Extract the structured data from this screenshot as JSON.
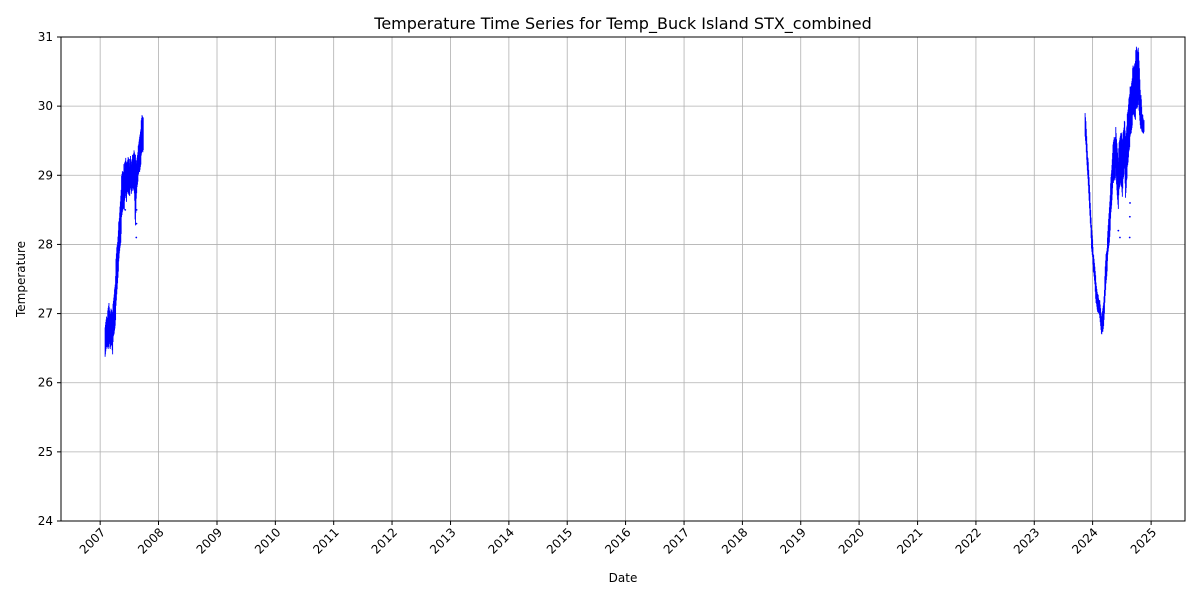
{
  "chart_data": {
    "type": "scatter",
    "title": "Temperature Time Series for Temp_Buck Island STX_combined",
    "xlabel": "Date",
    "ylabel": "Temperature",
    "xlim": [
      "2006-05-01",
      "2025-08-01"
    ],
    "ylim": [
      24,
      31
    ],
    "grid": true,
    "color": "#0000ff",
    "x_tick_labels": [
      "2007",
      "2008",
      "2009",
      "2010",
      "2011",
      "2012",
      "2013",
      "2014",
      "2015",
      "2016",
      "2017",
      "2018",
      "2019",
      "2020",
      "2021",
      "2022",
      "2023",
      "2024",
      "2025"
    ],
    "y_ticks": [
      24,
      25,
      26,
      27,
      28,
      29,
      30,
      31
    ],
    "series": [
      {
        "x": [
          "2007-02-01",
          "2007-02-05",
          "2007-02-10",
          "2007-02-15",
          "2007-02-20",
          "2007-02-25",
          "2007-03-01",
          "2007-03-05",
          "2007-03-10",
          "2007-03-15",
          "2007-03-20",
          "2007-03-25",
          "2007-04-01",
          "2007-04-05",
          "2007-04-10",
          "2007-04-15",
          "2007-04-20",
          "2007-04-25",
          "2007-05-01",
          "2007-05-05",
          "2007-05-10",
          "2007-05-15",
          "2007-05-20",
          "2007-05-25",
          "2007-06-01",
          "2007-06-05",
          "2007-06-10",
          "2007-06-15",
          "2007-06-20",
          "2007-06-25",
          "2007-07-01",
          "2007-07-05",
          "2007-07-10",
          "2007-07-15",
          "2007-07-20",
          "2007-07-25",
          "2007-08-01",
          "2007-08-05",
          "2007-08-10",
          "2007-08-15",
          "2007-08-20",
          "2007-08-25",
          "2007-09-01",
          "2007-09-05",
          "2007-09-10",
          "2007-09-15",
          "2007-09-20",
          "2007-09-25",
          "2007-09-30"
        ],
        "low": [
          26.3,
          26.4,
          26.5,
          26.5,
          26.4,
          26.5,
          26.6,
          26.4,
          26.5,
          26.5,
          26.4,
          26.6,
          26.7,
          26.8,
          27.0,
          27.2,
          27.4,
          27.6,
          27.8,
          27.9,
          28.0,
          28.3,
          28.4,
          28.5,
          28.5,
          28.6,
          28.7,
          28.6,
          28.7,
          28.7,
          28.7,
          28.7,
          28.8,
          28.7,
          28.8,
          28.7,
          28.8,
          28.6,
          28.1,
          28.6,
          28.8,
          28.9,
          29.0,
          29.0,
          29.1,
          29.2,
          29.3,
          29.3,
          29.4
        ],
        "high": [
          26.8,
          26.9,
          27.0,
          27.0,
          27.1,
          27.2,
          27.1,
          27.0,
          27.1,
          27.1,
          27.1,
          27.2,
          27.4,
          27.5,
          27.8,
          28.0,
          28.1,
          28.3,
          28.4,
          28.6,
          28.8,
          29.0,
          29.1,
          29.1,
          29.2,
          29.2,
          29.3,
          29.2,
          29.2,
          29.3,
          29.3,
          29.2,
          29.3,
          29.2,
          29.3,
          29.3,
          29.4,
          29.4,
          29.3,
          29.2,
          29.3,
          29.4,
          29.5,
          29.6,
          29.7,
          29.8,
          29.9,
          29.9,
          29.9
        ]
      },
      {
        "x": [
          "2023-11-15",
          "2023-11-20",
          "2023-11-25",
          "2023-12-01",
          "2023-12-05",
          "2023-12-10",
          "2023-12-15",
          "2023-12-20",
          "2023-12-25",
          "2024-01-01",
          "2024-01-05",
          "2024-01-10",
          "2024-01-15",
          "2024-01-20",
          "2024-01-25",
          "2024-02-01",
          "2024-02-05",
          "2024-02-10",
          "2024-02-15",
          "2024-02-20",
          "2024-02-25",
          "2024-03-01",
          "2024-03-05",
          "2024-03-10",
          "2024-03-15",
          "2024-03-20",
          "2024-03-25",
          "2024-04-01",
          "2024-04-05",
          "2024-04-10",
          "2024-04-15",
          "2024-04-20",
          "2024-04-25",
          "2024-05-01",
          "2024-05-05",
          "2024-05-10",
          "2024-05-15",
          "2024-05-20",
          "2024-05-25",
          "2024-06-01",
          "2024-06-05",
          "2024-06-10",
          "2024-06-15",
          "2024-06-20",
          "2024-06-25",
          "2024-07-01",
          "2024-07-05",
          "2024-07-10",
          "2024-07-15",
          "2024-07-20",
          "2024-07-25",
          "2024-08-01",
          "2024-08-05",
          "2024-08-10",
          "2024-08-15",
          "2024-08-20",
          "2024-08-25",
          "2024-09-01",
          "2024-09-05",
          "2024-09-10",
          "2024-09-15",
          "2024-09-20",
          "2024-09-25",
          "2024-10-01",
          "2024-10-05",
          "2024-10-10",
          "2024-10-15",
          "2024-10-20",
          "2024-10-25",
          "2024-11-01",
          "2024-11-05",
          "2024-11-10",
          "2024-11-15",
          "2024-11-20"
        ],
        "low": [
          29.5,
          29.4,
          29.2,
          29.0,
          28.8,
          28.6,
          28.4,
          28.2,
          27.9,
          27.8,
          27.6,
          27.5,
          27.4,
          27.2,
          27.1,
          27.0,
          27.0,
          27.0,
          26.9,
          26.8,
          26.7,
          26.7,
          26.7,
          26.8,
          27.0,
          27.2,
          27.4,
          27.6,
          27.8,
          27.9,
          28.0,
          28.2,
          28.4,
          28.6,
          28.8,
          28.8,
          28.9,
          28.9,
          29.0,
          28.7,
          28.6,
          28.5,
          28.7,
          28.8,
          28.9,
          28.7,
          28.6,
          28.9,
          29.0,
          29.0,
          28.6,
          28.9,
          29.0,
          29.1,
          29.3,
          29.4,
          29.5,
          29.6,
          29.7,
          29.8,
          29.8,
          29.8,
          29.8,
          29.9,
          29.9,
          30.0,
          29.9,
          29.8,
          29.7,
          29.6,
          29.6,
          29.6,
          29.6,
          29.6
        ],
        "high": [
          29.9,
          29.8,
          29.6,
          29.3,
          29.2,
          29.0,
          28.8,
          28.5,
          28.3,
          28.1,
          27.9,
          27.8,
          27.7,
          27.6,
          27.4,
          27.3,
          27.3,
          27.2,
          27.2,
          27.1,
          27.0,
          27.0,
          27.1,
          27.2,
          27.4,
          27.7,
          27.9,
          28.0,
          28.2,
          28.4,
          28.6,
          28.8,
          29.0,
          29.2,
          29.4,
          29.5,
          29.6,
          29.6,
          29.7,
          29.5,
          29.4,
          29.3,
          29.5,
          29.6,
          29.7,
          29.6,
          29.5,
          29.7,
          29.8,
          29.8,
          29.6,
          29.8,
          29.9,
          30.0,
          30.2,
          30.3,
          30.3,
          30.4,
          30.5,
          30.6,
          30.6,
          30.7,
          30.8,
          30.9,
          30.9,
          30.9,
          30.8,
          30.6,
          30.3,
          30.1,
          29.9,
          29.9,
          29.8,
          29.8
        ]
      }
    ],
    "outliers": [
      {
        "x": "2007-06-07",
        "y": 28.5
      },
      {
        "x": "2007-08-15",
        "y": 28.1
      },
      {
        "x": "2007-08-16",
        "y": 28.3
      },
      {
        "x": "2007-08-17",
        "y": 28.5
      },
      {
        "x": "2024-06-10",
        "y": 28.2
      },
      {
        "x": "2024-06-20",
        "y": 28.1
      },
      {
        "x": "2024-08-20",
        "y": 28.1
      },
      {
        "x": "2024-08-21",
        "y": 28.4
      },
      {
        "x": "2024-08-22",
        "y": 28.6
      }
    ]
  }
}
